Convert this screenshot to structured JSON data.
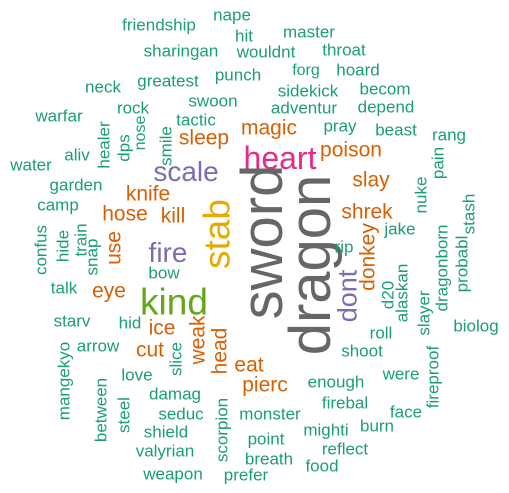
{
  "palette": {
    "teal": "#1b9e77",
    "orange": "#d95f02",
    "purple": "#7570b3",
    "magenta": "#e7298a",
    "green": "#66a61e",
    "gold": "#e6ab02",
    "gray": "#666666"
  },
  "words": [
    {
      "text": "friendship",
      "color": "teal"
    },
    {
      "text": "nape",
      "color": "teal"
    },
    {
      "text": "hit",
      "color": "teal"
    },
    {
      "text": "master",
      "color": "teal"
    },
    {
      "text": "sharingan",
      "color": "teal"
    },
    {
      "text": "wouldnt",
      "color": "teal"
    },
    {
      "text": "throat",
      "color": "teal"
    },
    {
      "text": "forg",
      "color": "teal"
    },
    {
      "text": "hoard",
      "color": "teal"
    },
    {
      "text": "neck",
      "color": "teal"
    },
    {
      "text": "greatest",
      "color": "teal"
    },
    {
      "text": "punch",
      "color": "teal"
    },
    {
      "text": "sidekick",
      "color": "teal"
    },
    {
      "text": "becom",
      "color": "teal"
    },
    {
      "text": "rock",
      "color": "teal"
    },
    {
      "text": "swoon",
      "color": "teal"
    },
    {
      "text": "adventur",
      "color": "teal"
    },
    {
      "text": "depend",
      "color": "teal"
    },
    {
      "text": "warfar",
      "color": "teal"
    },
    {
      "text": "tactic",
      "color": "teal"
    },
    {
      "text": "magic",
      "color": "orange"
    },
    {
      "text": "pray",
      "color": "teal"
    },
    {
      "text": "beast",
      "color": "teal"
    },
    {
      "text": "rang",
      "color": "teal"
    },
    {
      "text": "sleep",
      "color": "orange"
    },
    {
      "text": "heart",
      "color": "magenta"
    },
    {
      "text": "poison",
      "color": "orange"
    },
    {
      "text": "aliv",
      "color": "teal"
    },
    {
      "text": "healer",
      "color": "teal"
    },
    {
      "text": "dps",
      "color": "teal"
    },
    {
      "text": "nose",
      "color": "teal"
    },
    {
      "text": "smile",
      "color": "teal"
    },
    {
      "text": "pain",
      "color": "teal"
    },
    {
      "text": "water",
      "color": "teal"
    },
    {
      "text": "scale",
      "color": "purple"
    },
    {
      "text": "slay",
      "color": "orange"
    },
    {
      "text": "garden",
      "color": "teal"
    },
    {
      "text": "knife",
      "color": "orange"
    },
    {
      "text": "sword",
      "color": "gray"
    },
    {
      "text": "nuke",
      "color": "teal"
    },
    {
      "text": "camp",
      "color": "teal"
    },
    {
      "text": "stash",
      "color": "teal"
    },
    {
      "text": "hose",
      "color": "orange"
    },
    {
      "text": "kill",
      "color": "orange"
    },
    {
      "text": "stab",
      "color": "gold"
    },
    {
      "text": "shrek",
      "color": "orange"
    },
    {
      "text": "confus",
      "color": "teal"
    },
    {
      "text": "hide",
      "color": "teal"
    },
    {
      "text": "train",
      "color": "teal"
    },
    {
      "text": "jake",
      "color": "teal"
    },
    {
      "text": "use",
      "color": "orange"
    },
    {
      "text": "fire",
      "color": "purple"
    },
    {
      "text": "dragon",
      "color": "gray"
    },
    {
      "text": "donkey",
      "color": "orange"
    },
    {
      "text": "rip",
      "color": "teal"
    },
    {
      "text": "snap",
      "color": "teal"
    },
    {
      "text": "bow",
      "color": "teal"
    },
    {
      "text": "dragonborn",
      "color": "teal"
    },
    {
      "text": "probabl",
      "color": "teal"
    },
    {
      "text": "talk",
      "color": "teal"
    },
    {
      "text": "eye",
      "color": "orange"
    },
    {
      "text": "kind",
      "color": "green"
    },
    {
      "text": "dont",
      "color": "purple"
    },
    {
      "text": "alaskan",
      "color": "teal"
    },
    {
      "text": "d20",
      "color": "teal"
    },
    {
      "text": "slayer",
      "color": "teal"
    },
    {
      "text": "starv",
      "color": "teal"
    },
    {
      "text": "hid",
      "color": "teal"
    },
    {
      "text": "ice",
      "color": "orange"
    },
    {
      "text": "weak",
      "color": "orange"
    },
    {
      "text": "biolog",
      "color": "teal"
    },
    {
      "text": "mangekyo",
      "color": "teal"
    },
    {
      "text": "arrow",
      "color": "teal"
    },
    {
      "text": "head",
      "color": "orange"
    },
    {
      "text": "roll",
      "color": "teal"
    },
    {
      "text": "cut",
      "color": "orange"
    },
    {
      "text": "slice",
      "color": "teal"
    },
    {
      "text": "shoot",
      "color": "teal"
    },
    {
      "text": "eat",
      "color": "orange"
    },
    {
      "text": "love",
      "color": "teal"
    },
    {
      "text": "were",
      "color": "teal"
    },
    {
      "text": "pierc",
      "color": "orange"
    },
    {
      "text": "enough",
      "color": "teal"
    },
    {
      "text": "fireproof",
      "color": "teal"
    },
    {
      "text": "damag",
      "color": "teal"
    },
    {
      "text": "between",
      "color": "teal"
    },
    {
      "text": "steel",
      "color": "teal"
    },
    {
      "text": "seduc",
      "color": "teal"
    },
    {
      "text": "firebal",
      "color": "teal"
    },
    {
      "text": "monster",
      "color": "teal"
    },
    {
      "text": "face",
      "color": "teal"
    },
    {
      "text": "shield",
      "color": "teal"
    },
    {
      "text": "scorpion",
      "color": "teal"
    },
    {
      "text": "mighti",
      "color": "teal"
    },
    {
      "text": "burn",
      "color": "teal"
    },
    {
      "text": "point",
      "color": "teal"
    },
    {
      "text": "reflect",
      "color": "teal"
    },
    {
      "text": "valyrian",
      "color": "teal"
    },
    {
      "text": "breath",
      "color": "teal"
    },
    {
      "text": "food",
      "color": "teal"
    },
    {
      "text": "weapon",
      "color": "teal"
    },
    {
      "text": "prefer",
      "color": "teal"
    }
  ]
}
